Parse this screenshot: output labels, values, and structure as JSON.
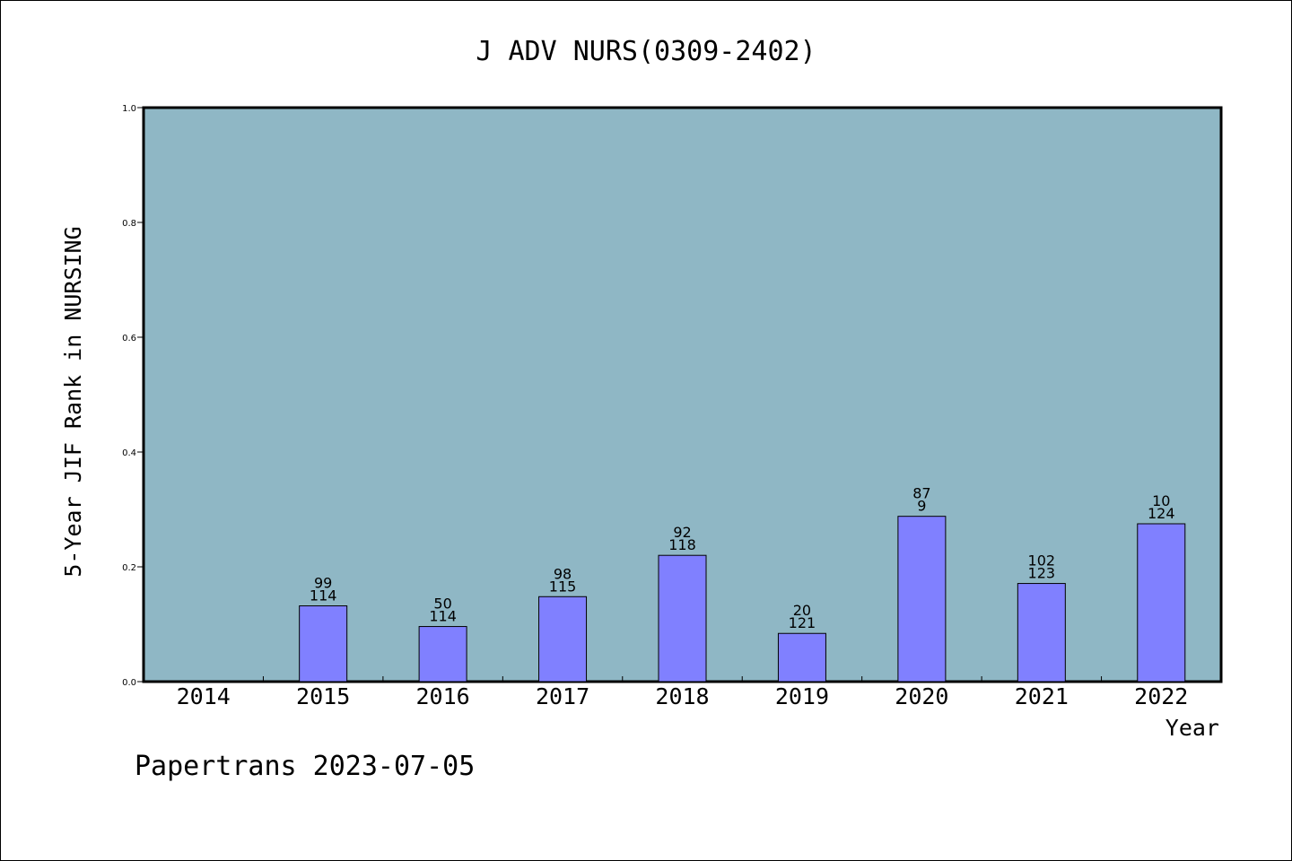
{
  "footer": {
    "text": "Papertrans 2023-07-05"
  },
  "chart_data": {
    "type": "bar",
    "title": "J ADV NURS(0309-2402)",
    "xlabel": "Year",
    "ylabel": "5-Year JIF Rank in NURSING",
    "ylim": [
      0,
      1.0
    ],
    "yticks": [
      "0.0",
      "0.2",
      "0.4",
      "0.6",
      "0.8",
      "1.0"
    ],
    "grid": false,
    "categories": [
      "2014",
      "2015",
      "2016",
      "2017",
      "2018",
      "2019",
      "2020",
      "2021",
      "2022"
    ],
    "values": [
      null,
      0.132,
      0.096,
      0.148,
      0.22,
      0.084,
      0.288,
      0.171,
      0.275
    ],
    "labels": [
      {
        "rank": "",
        "total": ""
      },
      {
        "rank": "99",
        "total": "114"
      },
      {
        "rank": "50",
        "total": "114"
      },
      {
        "rank": "98",
        "total": "115"
      },
      {
        "rank": "92",
        "total": "118"
      },
      {
        "rank": "20",
        "total": "121"
      },
      {
        "rank": "87",
        "total": "9"
      },
      {
        "rank": "102",
        "total": "123"
      },
      {
        "rank": "10",
        "total": "124"
      }
    ],
    "colors": {
      "plot_bg": "#8fb7c5",
      "bar": "#8080ff",
      "bar_edge": "#000000"
    }
  }
}
